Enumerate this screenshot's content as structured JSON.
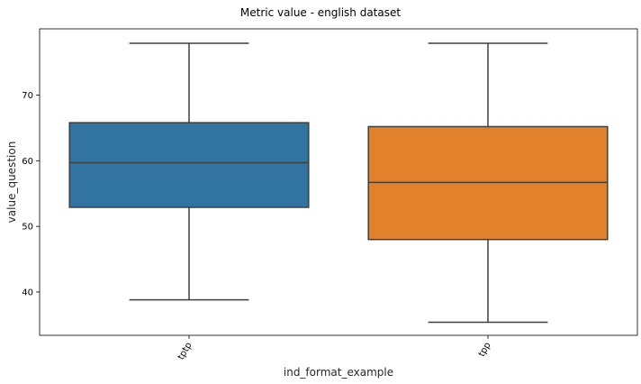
{
  "chart_data": {
    "type": "box",
    "title": "Metric value - english dataset",
    "xlabel": "ind_format_example",
    "ylabel": "value_question",
    "categories": [
      "tptp",
      "tpp"
    ],
    "boxes": [
      {
        "category": "tptp",
        "whisker_low": 38.8,
        "q1": 52.9,
        "median": 59.7,
        "q3": 65.8,
        "whisker_high": 77.9,
        "color": "#3274a1"
      },
      {
        "category": "tpp",
        "whisker_low": 35.4,
        "q1": 48.0,
        "median": 56.7,
        "q3": 65.2,
        "whisker_high": 77.9,
        "color": "#e1812c"
      }
    ],
    "yticks": [
      40,
      50,
      60,
      70
    ],
    "ylim": [
      33.4,
      80.1
    ],
    "grid": false,
    "x_tick_rotation_deg": 60
  }
}
